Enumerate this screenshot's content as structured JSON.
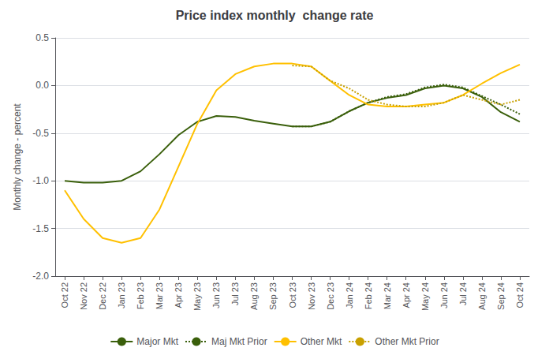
{
  "chart_data": {
    "type": "line",
    "title": "Price index monthly  change rate",
    "ylabel": "Monthly change - percent",
    "categories": [
      "Oct 22",
      "Nov 22",
      "Dec 22",
      "Jan 23",
      "Feb 23",
      "Mar 23",
      "Apr 23",
      "May 23",
      "Jun 23",
      "Jul 23",
      "Aug 23",
      "Sep 23",
      "Oct 23",
      "Nov 23",
      "Dec 23",
      "Jan 24",
      "Feb 24",
      "Mar 24",
      "Apr 24",
      "May 24",
      "Jun 24",
      "Jul 24",
      "Aug 24",
      "Sep 24",
      "Oct 24"
    ],
    "series": [
      {
        "name": "Major Mkt",
        "color": "#3a5f0b",
        "line_style": "solid",
        "values": [
          -1.0,
          -1.02,
          -1.02,
          -1.0,
          -0.9,
          -0.72,
          -0.52,
          -0.38,
          -0.32,
          -0.33,
          -0.37,
          -0.4,
          -0.43,
          -0.43,
          -0.38,
          -0.27,
          -0.18,
          -0.13,
          -0.1,
          -0.03,
          0.0,
          -0.03,
          -0.12,
          -0.28,
          -0.38
        ]
      },
      {
        "name": "Maj Mkt Prior",
        "color": "#3a5f0b",
        "line_style": "dotted",
        "values": [
          null,
          null,
          null,
          null,
          null,
          null,
          null,
          null,
          null,
          null,
          null,
          null,
          -0.43,
          -0.43,
          -0.38,
          -0.27,
          -0.18,
          -0.12,
          -0.09,
          -0.02,
          0.01,
          -0.02,
          -0.11,
          -0.2,
          -0.3
        ]
      },
      {
        "name": "Other Mkt",
        "color": "#ffc000",
        "line_style": "solid",
        "values": [
          -1.1,
          -1.4,
          -1.6,
          -1.65,
          -1.6,
          -1.3,
          -0.85,
          -0.4,
          -0.05,
          0.12,
          0.2,
          0.23,
          0.23,
          0.2,
          0.05,
          -0.1,
          -0.2,
          -0.22,
          -0.22,
          -0.2,
          -0.18,
          -0.1,
          0.02,
          0.13,
          0.22
        ]
      },
      {
        "name": "Other Mkt Prior",
        "color": "#c8a000",
        "line_style": "dotted",
        "values": [
          null,
          null,
          null,
          null,
          null,
          null,
          null,
          null,
          null,
          null,
          null,
          null,
          0.21,
          0.2,
          0.05,
          -0.03,
          -0.15,
          -0.2,
          -0.22,
          -0.22,
          -0.18,
          -0.1,
          -0.15,
          -0.2,
          -0.15
        ]
      }
    ],
    "ylim": [
      -2.0,
      0.5
    ],
    "yticks": [
      {
        "value": -2.0,
        "label": "-2.0"
      },
      -1.5,
      {
        "value": -1.0,
        "label": "-1.0"
      },
      -0.5,
      {
        "value": 0.0,
        "label": "0.0"
      },
      0.5
    ],
    "grid": true,
    "legend": "bottom"
  }
}
